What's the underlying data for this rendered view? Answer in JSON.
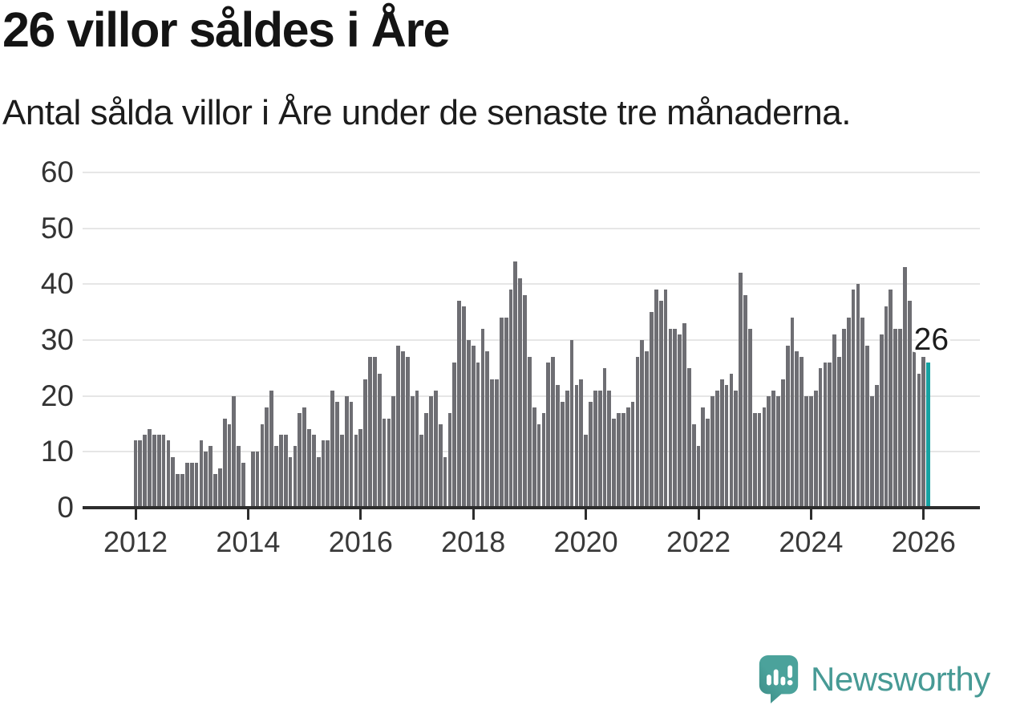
{
  "header": {
    "title": "26 villor såldes i Åre",
    "subtitle": "Antal sålda villor i Åre under de senaste tre månaderna."
  },
  "footer": {
    "logo_text": "Newsworthy"
  },
  "chart_data": {
    "type": "bar",
    "title": "26 villor såldes i Åre",
    "subtitle": "Antal sålda villor i Åre under de senaste tre månaderna.",
    "frequency": "monthly",
    "x_start": "2012-01",
    "x_end": "2026-02",
    "start_year": 2012,
    "values": [
      12,
      12,
      13,
      14,
      13,
      13,
      13,
      12,
      9,
      6,
      6,
      8,
      8,
      8,
      12,
      10,
      11,
      6,
      7,
      16,
      15,
      20,
      11,
      8,
      0,
      10,
      10,
      15,
      18,
      21,
      11,
      13,
      13,
      9,
      11,
      17,
      18,
      14,
      13,
      9,
      12,
      12,
      21,
      19,
      13,
      20,
      19,
      13,
      14,
      23,
      27,
      27,
      24,
      16,
      16,
      20,
      29,
      28,
      27,
      20,
      21,
      13,
      17,
      20,
      21,
      15,
      9,
      17,
      26,
      37,
      36,
      30,
      29,
      26,
      32,
      28,
      23,
      23,
      34,
      34,
      39,
      44,
      41,
      38,
      27,
      18,
      15,
      17,
      26,
      27,
      22,
      19,
      21,
      30,
      22,
      23,
      13,
      19,
      21,
      21,
      25,
      21,
      16,
      17,
      17,
      18,
      19,
      27,
      30,
      28,
      35,
      39,
      37,
      39,
      32,
      32,
      31,
      33,
      25,
      15,
      11,
      18,
      16,
      20,
      21,
      23,
      22,
      24,
      21,
      42,
      38,
      32,
      17,
      17,
      18,
      20,
      21,
      20,
      23,
      29,
      34,
      28,
      27,
      20,
      20,
      21,
      25,
      26,
      26,
      31,
      27,
      32,
      34,
      39,
      40,
      34,
      29,
      20,
      22,
      31,
      36,
      39,
      32,
      32,
      43,
      37,
      28,
      24,
      27,
      26
    ],
    "gap_months": [
      "2014-01"
    ],
    "ylim": [
      0,
      60
    ],
    "y_ticks": [
      0,
      10,
      20,
      30,
      40,
      50,
      60
    ],
    "x_tick_years": [
      2012,
      2014,
      2016,
      2018,
      2020,
      2022,
      2024,
      2026
    ],
    "grid": true,
    "legend": "none",
    "last_value": 26,
    "last_value_label": "26",
    "bar_color": "#6e6e73",
    "highlight_color": "#16a2a2"
  }
}
